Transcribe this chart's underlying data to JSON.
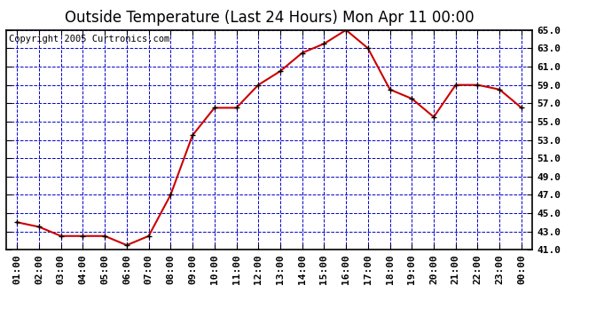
{
  "title": "Outside Temperature (Last 24 Hours) Mon Apr 11 00:00",
  "copyright": "Copyright 2005 Curtronics.com",
  "x_labels": [
    "01:00",
    "02:00",
    "03:00",
    "04:00",
    "05:00",
    "06:00",
    "07:00",
    "08:00",
    "09:00",
    "10:00",
    "11:00",
    "12:00",
    "13:00",
    "14:00",
    "15:00",
    "16:00",
    "17:00",
    "18:00",
    "19:00",
    "20:00",
    "21:00",
    "22:00",
    "23:00",
    "00:00"
  ],
  "y_values": [
    44.0,
    43.5,
    42.5,
    42.5,
    42.5,
    41.5,
    42.5,
    47.0,
    53.5,
    56.5,
    56.5,
    59.0,
    60.5,
    62.5,
    63.5,
    65.0,
    63.0,
    58.5,
    57.5,
    55.5,
    59.0,
    59.0,
    58.5,
    56.5
  ],
  "line_color": "#cc0000",
  "marker": "+",
  "marker_color": "#000000",
  "bg_color": "#ffffff",
  "plot_bg_color": "#ffffff",
  "grid_color": "#0000cc",
  "title_fontsize": 12,
  "copyright_fontsize": 7.5,
  "tick_fontsize": 8,
  "ylim": [
    41.0,
    65.0
  ],
  "yticks": [
    41.0,
    43.0,
    45.0,
    47.0,
    49.0,
    51.0,
    53.0,
    55.0,
    57.0,
    59.0,
    61.0,
    63.0,
    65.0
  ],
  "border_color": "#000000"
}
